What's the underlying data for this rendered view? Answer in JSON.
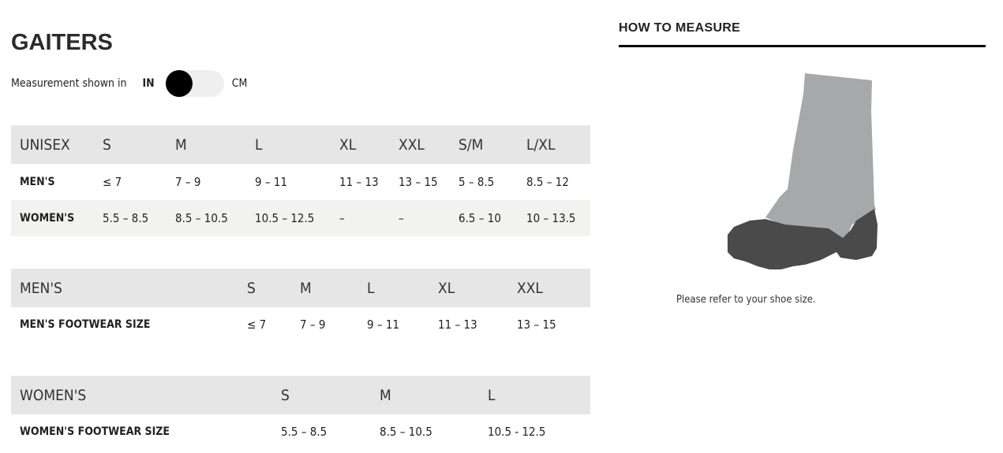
{
  "title": "GAITERS",
  "units": {
    "label": "Measurement shown in",
    "left": "IN",
    "right": "CM",
    "selected": "IN"
  },
  "unisex_table": {
    "headers": [
      "UNISEX",
      "S",
      "M",
      "L",
      "XL",
      "XXL",
      "S/M",
      "L/XL"
    ],
    "rows": [
      [
        "MEN'S",
        "≤ 7",
        "7 – 9",
        "9 – 11",
        "11 – 13",
        "13 – 15",
        "5 – 8.5",
        "8.5 – 12"
      ],
      [
        "WOMEN'S",
        "5.5 – 8.5",
        "8.5 – 10.5",
        "10.5 – 12.5",
        "–",
        "–",
        "6.5 – 10",
        "10 – 13.5"
      ]
    ]
  },
  "mens_table": {
    "headers": [
      "MEN'S",
      "S",
      "M",
      "L",
      "XL",
      "XXL"
    ],
    "rows": [
      [
        "MEN'S FOOTWEAR SIZE",
        "≤ 7",
        "7 – 9",
        "9 – 11",
        "11 – 13",
        "13 – 15"
      ]
    ]
  },
  "womens_table": {
    "headers": [
      "WOMEN'S",
      "S",
      "M",
      "L"
    ],
    "rows": [
      [
        "WOMEN'S FOOTWEAR SIZE",
        "5.5 – 8.5",
        "8.5 – 10.5",
        "10.5 - 12.5"
      ]
    ]
  },
  "how_to_measure": {
    "heading": "HOW TO MEASURE",
    "note": "Please refer to your shoe size.",
    "colors": {
      "gaiter": "#a7a8aa",
      "boot": "#4a4a4a"
    }
  }
}
